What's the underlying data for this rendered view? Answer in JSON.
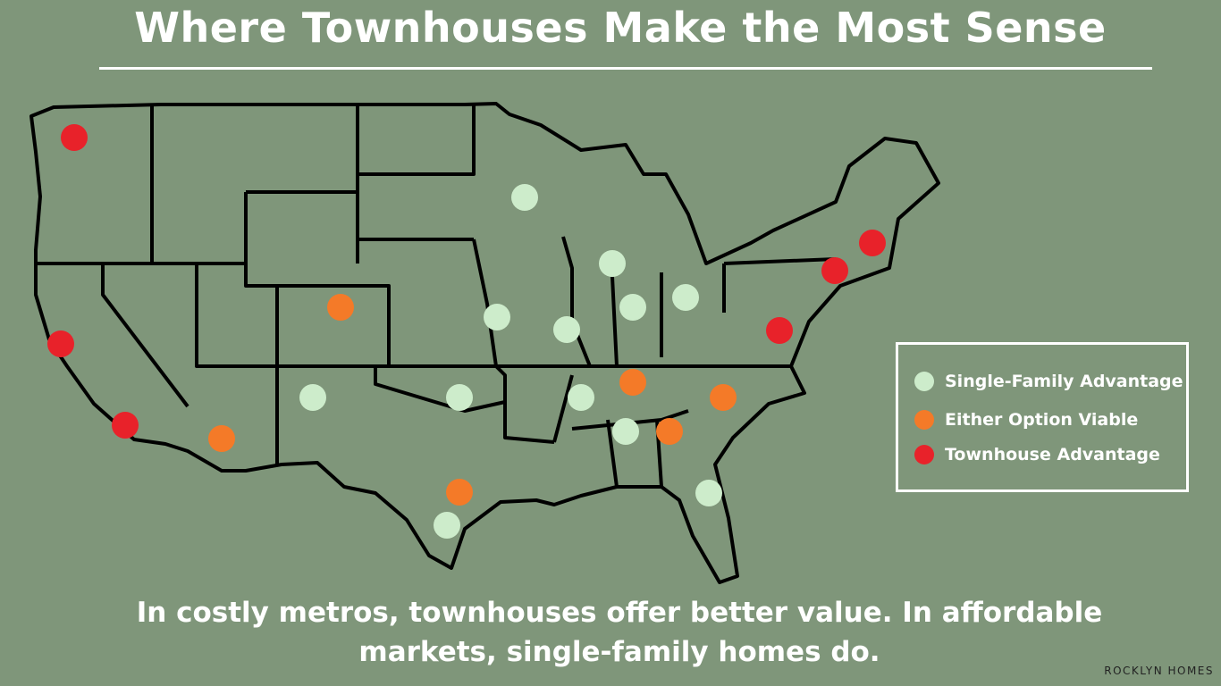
{
  "header": {
    "title": "Where Townhouses Make the Most Sense"
  },
  "legend": {
    "items": [
      {
        "label": "Single-Family Advantage"
      },
      {
        "label": "Either Option Viable"
      },
      {
        "label": "Townhouse Advantage"
      }
    ]
  },
  "caption": "In costly metros, townhouses offer better value. In affordable markets, single-family homes do.",
  "brand": "ROCKLYN HOMES"
}
